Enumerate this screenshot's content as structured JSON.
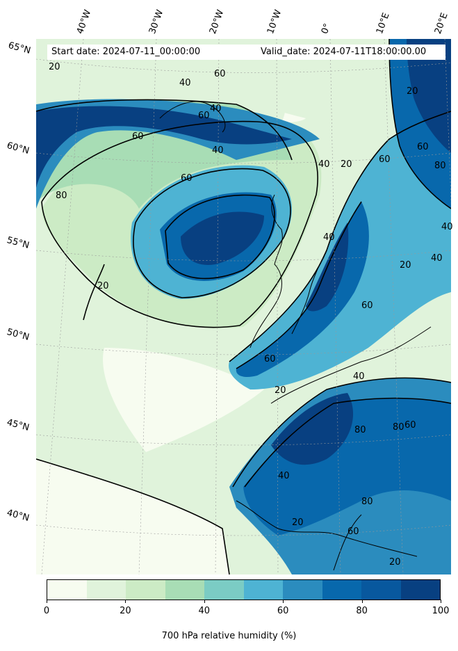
{
  "header": {
    "start_text": "Start date: 2024-07-11_00:00:00",
    "valid_text": "Valid_date: 2024-07-11T18:00:00.00"
  },
  "grid": {
    "lon_labels": [
      "40°W",
      "30°W",
      "20°W",
      "10°W",
      "0°",
      "10°E",
      "20°E"
    ],
    "lat_labels": [
      "65°N",
      "60°N",
      "55°N",
      "50°N",
      "45°N",
      "40°N"
    ]
  },
  "contour_labels": [
    "20",
    "40",
    "60",
    "20",
    "40",
    "60",
    "60",
    "40",
    "60",
    "80",
    "20",
    "40",
    "20",
    "40",
    "60",
    "80",
    "60",
    "40",
    "20",
    "60",
    "80",
    "60",
    "20",
    "40",
    "40",
    "60",
    "80",
    "20",
    "40",
    "60",
    "80",
    "20"
  ],
  "colorbar": {
    "label": "700 hPa relative humidity (%)",
    "ticks": [
      "0",
      "20",
      "40",
      "60",
      "80",
      "100"
    ],
    "range": [
      0,
      100
    ],
    "colors": [
      "#f7fcf0",
      "#e0f3db",
      "#ccebc5",
      "#a8ddb5",
      "#7bccc4",
      "#4eb3d3",
      "#2b8cbe",
      "#0868ac",
      "#08589e",
      "#084081"
    ]
  }
}
